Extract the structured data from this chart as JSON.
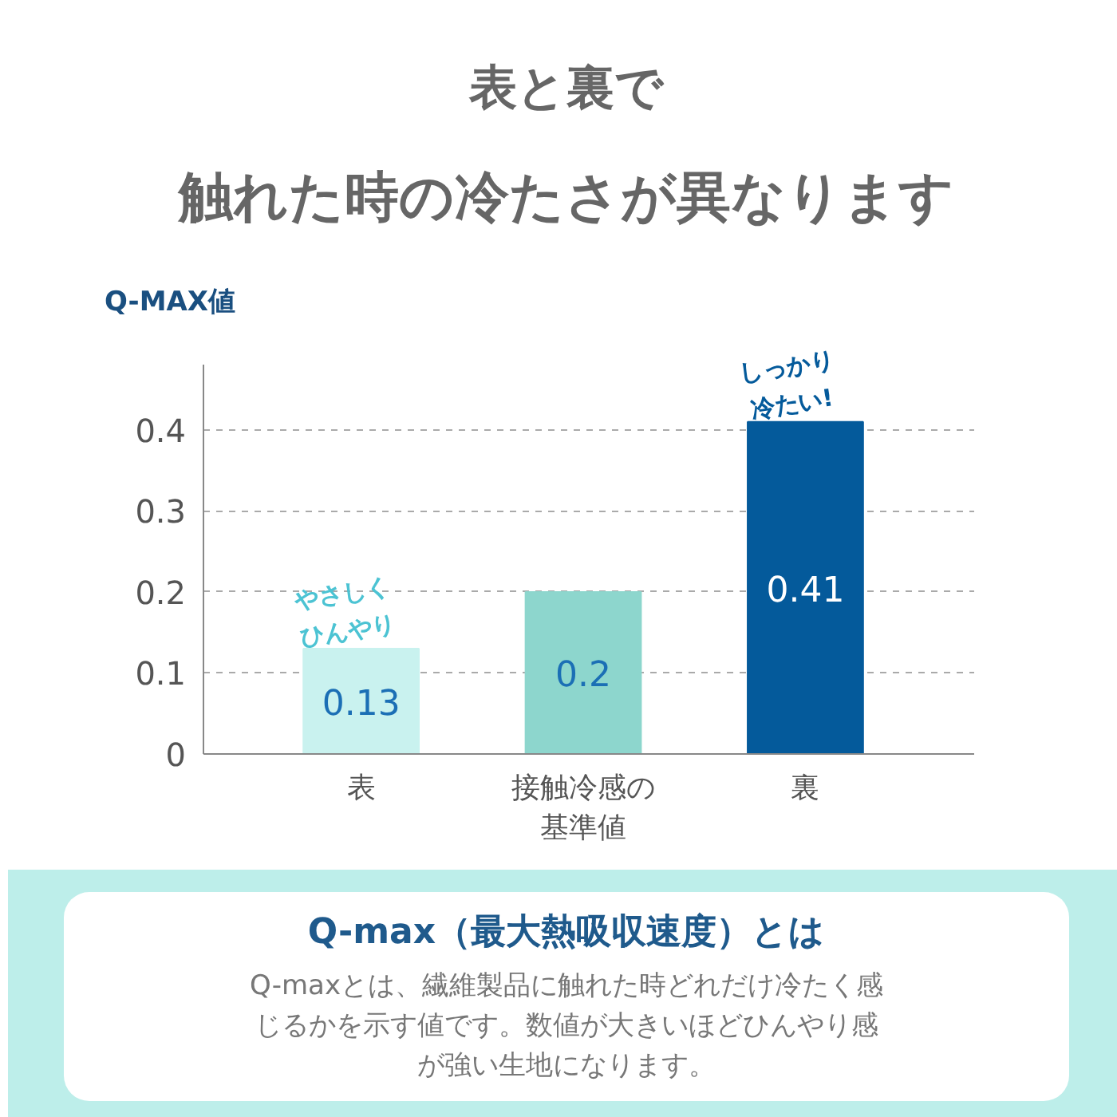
{
  "chart_data": {
    "type": "bar",
    "title": "表と裏で",
    "subtitle": "触れた時の冷たさが異なります",
    "ylabel": "Q-MAX値",
    "categories": [
      "表",
      "接触冷感の基準値",
      "裏"
    ],
    "values": [
      0.13,
      0.2,
      0.41
    ],
    "colors": [
      "#c9f2ef",
      "#8dd6cd",
      "#045a9b"
    ],
    "data_labels": true,
    "ylim": [
      0,
      0.48
    ],
    "yticks": [
      0,
      0.1,
      0.2,
      0.3,
      0.4
    ],
    "grid": "y",
    "annotations": [
      {
        "text": "やさしくひんやり",
        "x": "表",
        "y": 0.13
      },
      {
        "text": "しっかり冷たい!",
        "x": "裏",
        "y": 0.41
      },
      "Q-max（最大熱吸収速度）とは",
      "Q-maxとは、繊維製品に触れた時どれだけ冷たく感じるかを示す値です。数値が大きいほどひんやり感が強い生地になります。"
    ]
  }
}
